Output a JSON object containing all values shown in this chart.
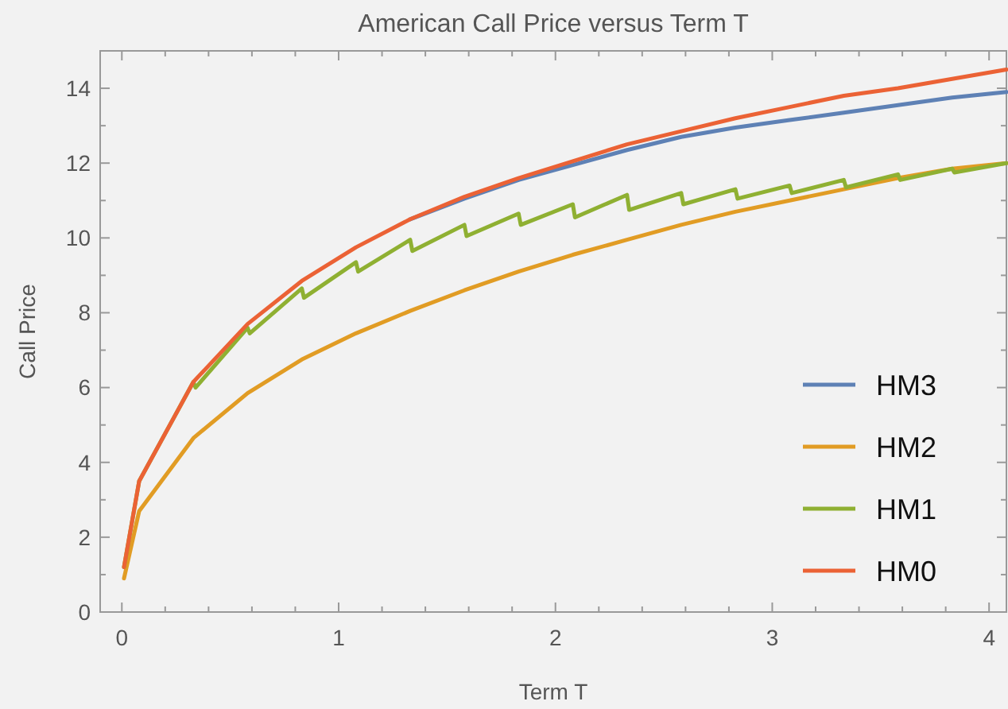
{
  "chart_data": {
    "type": "line",
    "title": "American Call Price versus Term T",
    "xlabel": "Term T",
    "ylabel": "Call Price",
    "xlim": [
      -0.1,
      4.08
    ],
    "ylim": [
      0,
      15
    ],
    "xticks": [
      0,
      {
        "value": 0.2,
        "label": null
      },
      {
        "value": 0.4,
        "label": null
      },
      {
        "value": 0.6,
        "label": null
      },
      {
        "value": 0.8,
        "label": null
      },
      1,
      {
        "value": 1.2,
        "label": null
      },
      {
        "value": 1.4,
        "label": null
      },
      {
        "value": 1.6,
        "label": null
      },
      {
        "value": 1.8,
        "label": null
      },
      2,
      {
        "value": 2.2,
        "label": null
      },
      {
        "value": 2.4,
        "label": null
      },
      {
        "value": 2.6,
        "label": null
      },
      {
        "value": 2.8,
        "label": null
      },
      3,
      {
        "value": 3.2,
        "label": null
      },
      {
        "value": 3.4,
        "label": null
      },
      {
        "value": 3.6,
        "label": null
      },
      {
        "value": 3.8,
        "label": null
      },
      4
    ],
    "yticks": [
      0,
      {
        "value": 1,
        "label": null
      },
      2,
      {
        "value": 3,
        "label": null
      },
      4,
      {
        "value": 5,
        "label": null
      },
      6,
      {
        "value": 7,
        "label": null
      },
      8,
      {
        "value": 9,
        "label": null
      },
      10,
      {
        "value": 11,
        "label": null
      },
      12,
      {
        "value": 13,
        "label": null
      },
      14
    ],
    "grid": false,
    "legend": "right",
    "marker": "none",
    "line_style": "solid",
    "x": [
      0.01,
      0.08,
      0.33,
      0.58,
      0.83,
      1.08,
      1.33,
      1.58,
      1.83,
      2.08,
      2.33,
      2.58,
      2.83,
      3.08,
      3.33,
      3.58,
      3.83,
      4.08
    ],
    "series": [
      {
        "name": "HM3",
        "color": "#5e81b5",
        "values": [
          null,
          null,
          null,
          null,
          null,
          null,
          10.5,
          11.05,
          11.55,
          11.95,
          12.35,
          12.7,
          12.95,
          13.15,
          13.35,
          13.55,
          13.75,
          13.9
        ]
      },
      {
        "name": "HM2",
        "color": "#e19c24",
        "values": [
          0.9,
          2.7,
          4.65,
          5.85,
          6.75,
          7.45,
          8.05,
          8.6,
          9.1,
          9.55,
          9.95,
          10.35,
          10.7,
          11.0,
          11.3,
          11.6,
          11.85,
          12.0
        ]
      },
      {
        "name": "HM1",
        "color": "#8fb032",
        "x": [
          0.01,
          0.08,
          0.33,
          0.34,
          0.58,
          0.59,
          0.83,
          0.84,
          1.08,
          1.09,
          1.33,
          1.34,
          1.58,
          1.59,
          1.83,
          1.84,
          2.08,
          2.09,
          2.33,
          2.34,
          2.58,
          2.59,
          2.83,
          2.84,
          3.08,
          3.09,
          3.33,
          3.34,
          3.58,
          3.59,
          3.83,
          3.84,
          4.08
        ],
        "values": [
          1.2,
          3.5,
          6.15,
          6.0,
          7.6,
          7.45,
          8.65,
          8.4,
          9.35,
          9.1,
          9.95,
          9.65,
          10.35,
          10.05,
          10.65,
          10.35,
          10.9,
          10.55,
          11.15,
          10.75,
          11.2,
          10.9,
          11.3,
          11.05,
          11.4,
          11.2,
          11.55,
          11.35,
          11.7,
          11.55,
          11.85,
          11.75,
          12.0
        ]
      },
      {
        "name": "HM0",
        "color": "#eb6235",
        "values": [
          1.2,
          3.5,
          6.15,
          7.7,
          8.85,
          9.75,
          10.5,
          11.1,
          11.6,
          12.05,
          12.5,
          12.85,
          13.2,
          13.5,
          13.8,
          14.0,
          14.25,
          14.5
        ]
      }
    ]
  }
}
